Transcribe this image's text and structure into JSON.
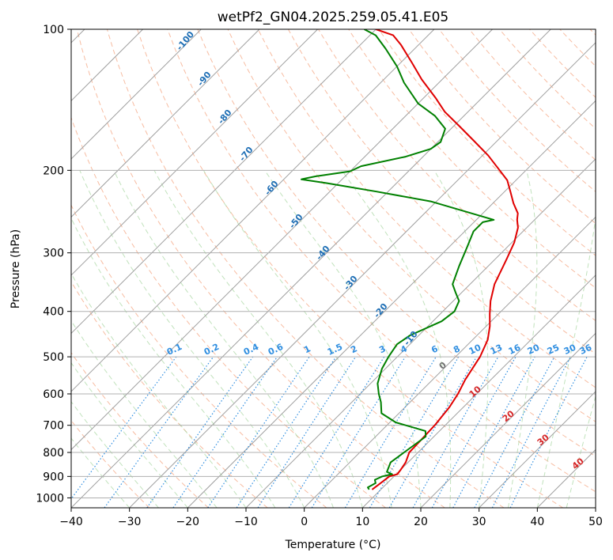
{
  "chart_data": {
    "type": "line",
    "title": "wetPf2_GN04.2025.259.05.41.E05",
    "xlabel": "Temperature (°C)",
    "ylabel": "Pressure (hPa)",
    "xlim": [
      -40,
      50
    ],
    "ylim": [
      1050,
      100
    ],
    "x_ticks": [
      -40,
      -30,
      -20,
      -10,
      0,
      10,
      20,
      30,
      40,
      50
    ],
    "y_ticks": [
      1000,
      900,
      800,
      700,
      600,
      500,
      400,
      300,
      200,
      100
    ],
    "grid": true,
    "series": [
      {
        "name": "temperature",
        "color": "#e00000",
        "points": [
          [
            8.5,
            960
          ],
          [
            8.8,
            935
          ],
          [
            9.2,
            900
          ],
          [
            10.2,
            890
          ],
          [
            10.0,
            870
          ],
          [
            9.6,
            840
          ],
          [
            8.5,
            800
          ],
          [
            8.4,
            760
          ],
          [
            8.2,
            700
          ],
          [
            7.6,
            640
          ],
          [
            6.8,
            600
          ],
          [
            5.6,
            560
          ],
          [
            4.2,
            500
          ],
          [
            2.6,
            460
          ],
          [
            0.6,
            430
          ],
          [
            -1.5,
            405
          ],
          [
            -3.6,
            380
          ],
          [
            -5.8,
            350
          ],
          [
            -8.0,
            310
          ],
          [
            -9.6,
            285
          ],
          [
            -11.5,
            265
          ],
          [
            -13.0,
            255
          ],
          [
            -14.0,
            247
          ],
          [
            -16.5,
            235
          ],
          [
            -19.0,
            222
          ],
          [
            -21.5,
            210
          ],
          [
            -24.5,
            200
          ],
          [
            -29.0,
            186
          ],
          [
            -34.0,
            173
          ],
          [
            -39.0,
            161
          ],
          [
            -44.0,
            150
          ],
          [
            -48.0,
            140
          ],
          [
            -53.5,
            128
          ],
          [
            -58.0,
            118
          ],
          [
            -63.0,
            108
          ],
          [
            -66.0,
            103
          ],
          [
            -70.0,
            100
          ]
        ]
      },
      {
        "name": "dewpoint",
        "color": "#008000",
        "points": [
          [
            8.0,
            960
          ],
          [
            7.4,
            950
          ],
          [
            8.0,
            930
          ],
          [
            7.3,
            915
          ],
          [
            8.0,
            900
          ],
          [
            9.3,
            890
          ],
          [
            8.0,
            880
          ],
          [
            7.0,
            840
          ],
          [
            7.6,
            800
          ],
          [
            8.6,
            740
          ],
          [
            7.6,
            720
          ],
          [
            1.0,
            690
          ],
          [
            -3.0,
            660
          ],
          [
            -5.0,
            625
          ],
          [
            -6.8,
            600
          ],
          [
            -8.8,
            570
          ],
          [
            -10.6,
            530
          ],
          [
            -11.5,
            500
          ],
          [
            -12.2,
            470
          ],
          [
            -11.5,
            450
          ],
          [
            -8.5,
            420
          ],
          [
            -8.0,
            400
          ],
          [
            -9.0,
            380
          ],
          [
            -11.0,
            365
          ],
          [
            -13.0,
            350
          ],
          [
            -15.0,
            320
          ],
          [
            -17.0,
            290
          ],
          [
            -18.5,
            270
          ],
          [
            -18.5,
            258
          ],
          [
            -17.0,
            255
          ],
          [
            -31.0,
            233
          ],
          [
            -42.0,
            222
          ],
          [
            -52.0,
            213
          ],
          [
            -57.0,
            209
          ],
          [
            -55.0,
            206
          ],
          [
            -50.0,
            201
          ],
          [
            -49.0,
            196
          ],
          [
            -43.0,
            187
          ],
          [
            -40.0,
            180
          ],
          [
            -39.5,
            174
          ],
          [
            -41.0,
            163
          ],
          [
            -45.0,
            153
          ],
          [
            -50.0,
            144
          ],
          [
            -56.0,
            130
          ],
          [
            -60.0,
            120
          ],
          [
            -65.0,
            110
          ],
          [
            -69.0,
            103
          ],
          [
            -72.0,
            100
          ]
        ]
      }
    ],
    "dry_adiabat_labels": [
      "-100",
      "-90",
      "-80",
      "-70",
      "-60",
      "-50",
      "-40",
      "-30",
      "-20",
      "-10"
    ],
    "moist_adiabat_labels": [
      "0",
      "10",
      "20",
      "30",
      "40"
    ],
    "mixing_ratio_labels": [
      "0.1",
      "0.2",
      "0.4",
      "0.6",
      "1",
      "1.5",
      "2",
      "3",
      "4",
      "6",
      "8",
      "10",
      "13",
      "16",
      "20",
      "25",
      "30",
      "36"
    ]
  },
  "colors": {
    "temperature": "#e00000",
    "dewpoint": "#008000",
    "isotherm": "#a0a0a0",
    "dry_adiabat": "#f4a582",
    "moist_adiabat": "#a6d5a0",
    "mixing_ratio": "#2f8ee0",
    "dry_label": "#1f6fb5",
    "moist_label": "#d62728"
  }
}
